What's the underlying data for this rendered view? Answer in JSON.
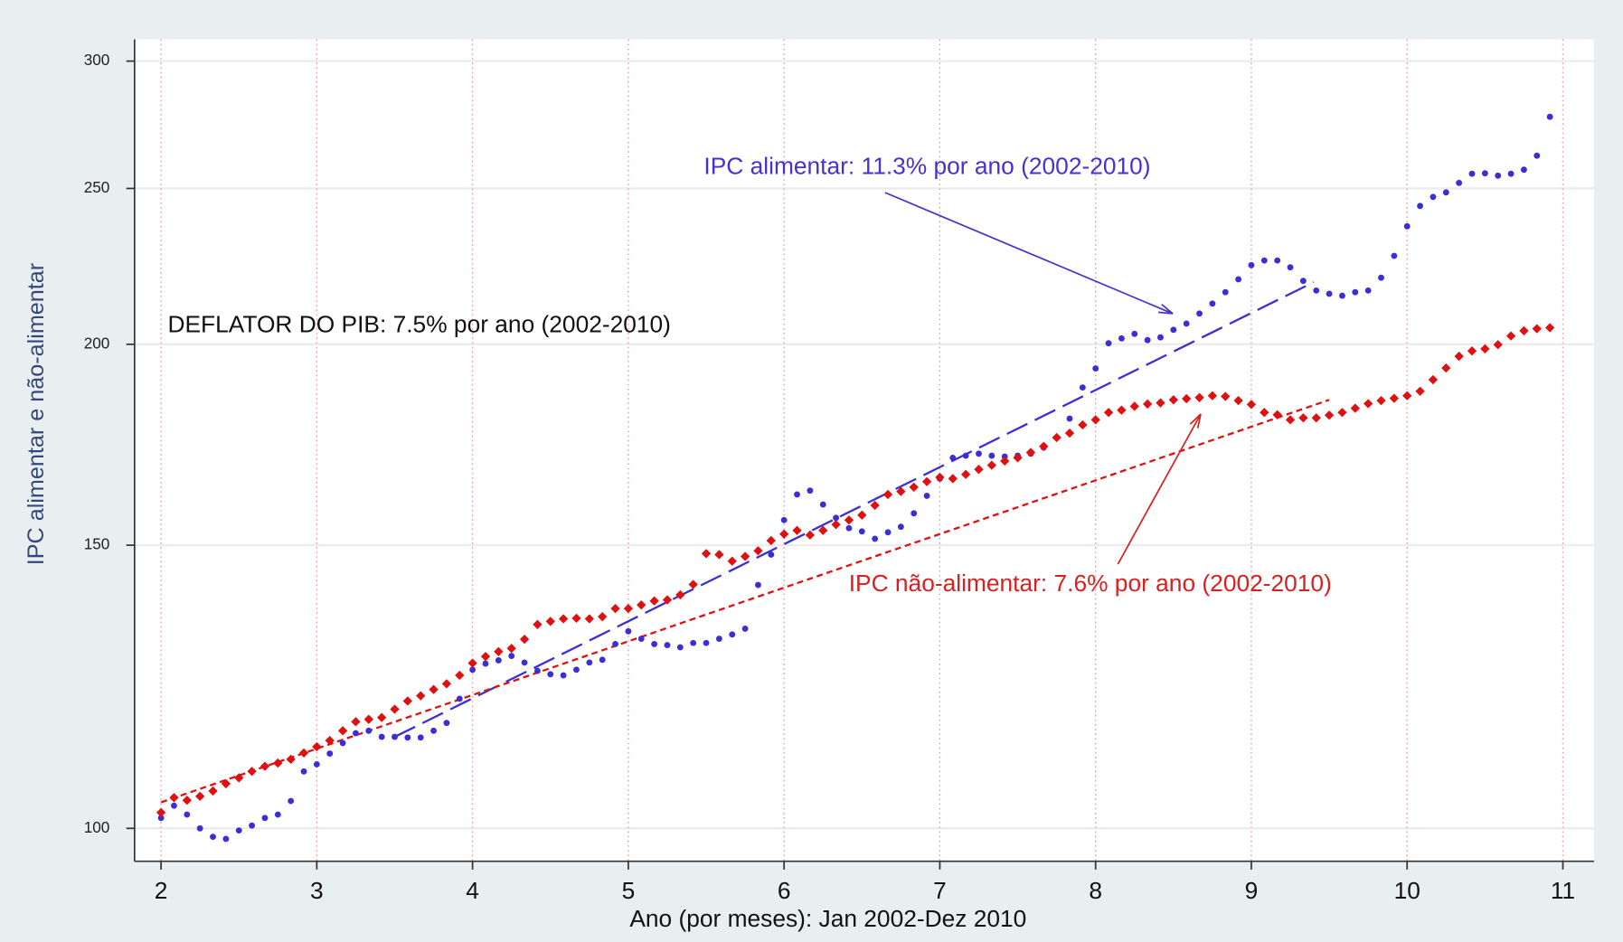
{
  "chart_data": {
    "type": "scatter",
    "y_label": "IPC alimentar e não-alimentar",
    "x_label": "Ano (por meses): Jan 2002-Dez 2010",
    "annotations": [
      {
        "text": "IPC alimentar: 11.3% por ano (2002-2010)",
        "color": "#4a2fd0"
      },
      {
        "text": "DEFLATOR DO PIB: 7.5% por ano (2002-2010)",
        "color": "#111111"
      },
      {
        "text": "IPC não-alimentar: 7.6% por ano (2002-2010)",
        "color": "#d82020"
      }
    ],
    "x": [
      2,
      2.0833,
      2.1667,
      2.25,
      2.3333,
      2.4167,
      2.5,
      2.5833,
      2.6667,
      2.75,
      2.8333,
      2.9167,
      3,
      3.0833,
      3.1667,
      3.25,
      3.3333,
      3.4167,
      3.5,
      3.5833,
      3.6667,
      3.75,
      3.8333,
      3.9167,
      4,
      4.0833,
      4.1667,
      4.25,
      4.3333,
      4.4167,
      4.5,
      4.5833,
      4.6667,
      4.75,
      4.8333,
      4.9167,
      5,
      5.0833,
      5.1667,
      5.25,
      5.3333,
      5.4167,
      5.5,
      5.5833,
      5.6667,
      5.75,
      5.8333,
      5.9167,
      6,
      6.0833,
      6.1667,
      6.25,
      6.3333,
      6.4167,
      6.5,
      6.5833,
      6.6667,
      6.75,
      6.8333,
      6.9167,
      7,
      7.0833,
      7.1667,
      7.25,
      7.3333,
      7.4167,
      7.5,
      7.5833,
      7.6667,
      7.75,
      7.8333,
      7.9167,
      8,
      8.0833,
      8.1667,
      8.25,
      8.3333,
      8.4167,
      8.5,
      8.5833,
      8.6667,
      8.75,
      8.8333,
      8.9167,
      9,
      9.0833,
      9.1667,
      9.25,
      9.3333,
      9.4167,
      9.5,
      9.5833,
      9.6667,
      9.75,
      9.8333,
      9.9167,
      10,
      10.0833,
      10.1667,
      10.25,
      10.3333,
      10.4167,
      10.5,
      10.5833,
      10.6667,
      10.75,
      10.8333,
      10.9167
    ],
    "series": [
      {
        "name": "IPC alimentar",
        "color": "#3a2fd6",
        "marker": "dot",
        "values": [
          101.5,
          103.3,
          102,
          100,
          98.8,
          98.5,
          99.7,
          100.4,
          101.5,
          102,
          104,
          108.5,
          109.6,
          111.3,
          113,
          114.6,
          115,
          114,
          114,
          113.9,
          113.9,
          115,
          116.3,
          120.4,
          125.5,
          126.6,
          127.2,
          128,
          126.8,
          125.3,
          124.7,
          124.5,
          125.5,
          126.8,
          127.3,
          130.2,
          132.6,
          131.2,
          130.2,
          130,
          129.6,
          130.4,
          130.4,
          131.2,
          132,
          133.1,
          141.7,
          148,
          155.5,
          161.3,
          162.2,
          159,
          156,
          153.7,
          153,
          151.4,
          152.8,
          154,
          157,
          161,
          165,
          170,
          170.5,
          171,
          170.5,
          170.3,
          170.5,
          171,
          172.5,
          175,
          179.8,
          188,
          193.2,
          200.3,
          201.7,
          203,
          201.2,
          202,
          204.2,
          206,
          209,
          212,
          215.5,
          219.5,
          224,
          225.5,
          225.5,
          223.3,
          219,
          216,
          215,
          214.4,
          215.5,
          216,
          220,
          227,
          236.8,
          243.8,
          247,
          248.6,
          252,
          255.3,
          255.5,
          254.6,
          255.3,
          256.8,
          262,
          277
        ]
      },
      {
        "name": "IPC não-alimentar",
        "color": "#e01010",
        "marker": "diamond",
        "values": [
          102.3,
          104.5,
          104.1,
          104.7,
          105.5,
          106.6,
          107.5,
          108.5,
          109.3,
          109.8,
          110.4,
          111.4,
          112.4,
          113.4,
          115,
          116.5,
          116.9,
          117.2,
          118.6,
          120,
          120.9,
          122,
          123,
          124.5,
          126.7,
          127.9,
          128.8,
          129.4,
          131.1,
          133.9,
          134.5,
          135,
          135.1,
          135,
          135.4,
          137,
          137,
          137.7,
          138.5,
          138.7,
          139.7,
          141.8,
          148.2,
          148,
          146.6,
          147.6,
          148.8,
          151,
          152.4,
          153.2,
          152.2,
          153.2,
          154.5,
          155.5,
          156.6,
          158.8,
          161.3,
          162,
          163,
          164.3,
          165.3,
          165,
          166,
          167.2,
          168.2,
          169.2,
          170,
          171.3,
          172.8,
          175,
          176.1,
          178.2,
          179.5,
          181.4,
          182,
          183,
          183.6,
          183.9,
          184.7,
          185,
          185.3,
          185.8,
          185.6,
          184.5,
          183.5,
          181.4,
          180.8,
          179.5,
          180,
          180,
          180.7,
          181.4,
          182.5,
          183.7,
          184.5,
          185.1,
          185.8,
          187,
          190.1,
          193.3,
          196.6,
          198.1,
          198.7,
          199.9,
          202.4,
          203.9,
          204.5,
          204.8
        ]
      }
    ],
    "trend_lines": [
      {
        "color": "#3a2fd6",
        "line_style": "long-dash",
        "x": [
          3.5,
          9.4
        ],
        "values": [
          114,
          218.6
        ]
      },
      {
        "color": "#e01010",
        "line_style": "short-dash",
        "x": [
          2,
          9.5
        ],
        "values": [
          103.8,
          184.7
        ]
      }
    ],
    "xlim": [
      1.83,
      11.2
    ],
    "xticks": [
      2,
      3,
      4,
      5,
      6,
      7,
      8,
      9,
      10,
      11
    ],
    "ylim": [
      95.4,
      309.5
    ],
    "yticks": [
      100,
      150,
      200,
      250,
      300
    ],
    "y_scale": "log",
    "grid": true
  }
}
